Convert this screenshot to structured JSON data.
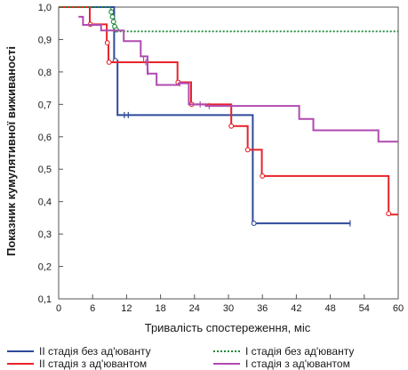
{
  "chart_data": {
    "type": "line",
    "xlabel": "Тривалість спостереження, міс",
    "ylabel": "Показник кумулятивної виживаності",
    "xlim": [
      0,
      60
    ],
    "ylim": [
      0.1,
      1.0
    ],
    "xticks": [
      0,
      6,
      12,
      18,
      24,
      30,
      36,
      42,
      48,
      54,
      60
    ],
    "xtick_labels": [
      "0",
      "6",
      "12",
      "18",
      "24",
      "30",
      "36",
      "42",
      "48",
      "54",
      "60"
    ],
    "yticks": [
      0.1,
      0.2,
      0.3,
      0.4,
      0.5,
      0.6,
      0.7,
      0.8,
      0.9,
      1.0
    ],
    "ytick_labels": [
      "0,1",
      "0,2",
      "0,3",
      "0,4",
      "0,5",
      "0,6",
      "0,7",
      "0,8",
      "0,9",
      "1,0"
    ],
    "grid": false,
    "legend_position": "bottom",
    "series": [
      {
        "name": "II стадія без ад'юванту",
        "color": "#2e4a9a",
        "dash": "solid",
        "steps": [
          [
            0,
            1.0
          ],
          [
            9.8,
            0.835
          ],
          [
            10.4,
            0.667
          ],
          [
            34.3,
            0.333
          ],
          [
            51.5,
            0.333
          ]
        ],
        "censored_circles": [
          [
            10.0,
            0.835
          ],
          [
            34.5,
            0.333
          ]
        ],
        "censored_ticks": [
          [
            11.6,
            0.667
          ],
          [
            12.3,
            0.667
          ],
          [
            51.5,
            0.333
          ]
        ]
      },
      {
        "name": "II стадія з ад'ювантом",
        "color": "#e8232a",
        "dash": "solid",
        "steps": [
          [
            0,
            1.0
          ],
          [
            5.5,
            0.947
          ],
          [
            8.5,
            0.89
          ],
          [
            8.8,
            0.83
          ],
          [
            21.0,
            0.768
          ],
          [
            23.4,
            0.7
          ],
          [
            30.5,
            0.633
          ],
          [
            33.4,
            0.56
          ],
          [
            35.9,
            0.479
          ],
          [
            58.3,
            0.36
          ],
          [
            60,
            0.36
          ]
        ],
        "censored_circles": [
          [
            5.6,
            0.947
          ],
          [
            8.6,
            0.89
          ],
          [
            8.9,
            0.83
          ],
          [
            21.1,
            0.768
          ],
          [
            23.5,
            0.7
          ],
          [
            30.5,
            0.633
          ],
          [
            33.4,
            0.56
          ],
          [
            36.0,
            0.479
          ],
          [
            58.3,
            0.363
          ]
        ],
        "censored_ticks": []
      },
      {
        "name": "I стадія без ад'юванту",
        "color": "#1e8a3a",
        "dash": "dotted",
        "steps": [
          [
            0,
            1.0
          ],
          [
            9.2,
            0.98
          ],
          [
            9.5,
            0.96
          ],
          [
            9.8,
            0.94
          ],
          [
            10.2,
            0.925
          ],
          [
            60,
            0.925
          ]
        ],
        "censored_circles": [
          [
            9.3,
            0.985
          ],
          [
            9.5,
            0.97
          ],
          [
            9.7,
            0.955
          ],
          [
            9.9,
            0.94
          ],
          [
            10.2,
            0.93
          ]
        ],
        "censored_ticks": []
      },
      {
        "name": "I стадія з ад'ювантом",
        "color": "#b04ab0",
        "dash": "solid",
        "steps": [
          [
            3.5,
            0.97
          ],
          [
            4.3,
            0.945
          ],
          [
            7.5,
            0.928
          ],
          [
            11.5,
            0.895
          ],
          [
            14.5,
            0.848
          ],
          [
            15.7,
            0.795
          ],
          [
            17.3,
            0.76
          ],
          [
            21.2,
            0.765
          ],
          [
            23.0,
            0.7
          ],
          [
            26.0,
            0.695
          ],
          [
            42.5,
            0.655
          ],
          [
            45.0,
            0.62
          ],
          [
            56.5,
            0.585
          ],
          [
            60,
            0.585
          ]
        ],
        "censored_circles": [],
        "censored_ticks": [
          [
            15.0,
            0.84
          ],
          [
            15.4,
            0.83
          ],
          [
            15.8,
            0.8
          ],
          [
            21.4,
            0.765
          ],
          [
            25.0,
            0.7
          ],
          [
            26.6,
            0.695
          ]
        ]
      }
    ]
  }
}
